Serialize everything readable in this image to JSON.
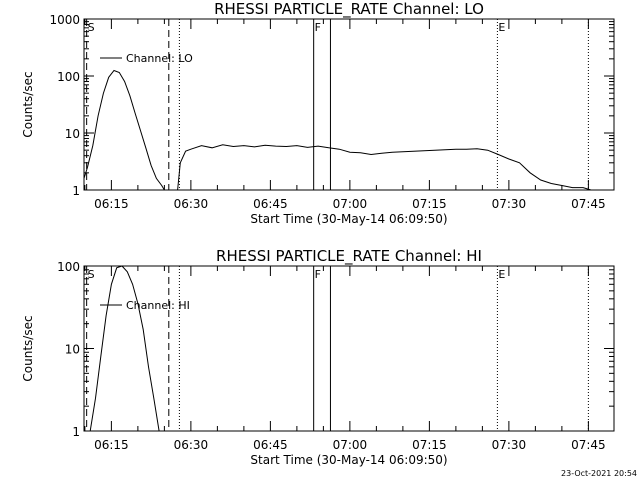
{
  "chart_data": [
    {
      "type": "line",
      "title": "RHESSI PARTICLE_RATE Channel: LO",
      "xlabel": "Start Time (30-May-14 06:09:50)",
      "ylabel": "Counts/sec",
      "yscale": "log",
      "ylim": [
        1,
        1000
      ],
      "xlim": [
        "06:09:50",
        "07:49:50"
      ],
      "x_ticks": [
        "06:15",
        "06:30",
        "06:45",
        "07:00",
        "07:15",
        "07:30",
        "07:45"
      ],
      "y_ticks": [
        "1",
        "10",
        "100",
        "1000"
      ],
      "legend": {
        "placement": "top-left"
      },
      "markers": [
        {
          "label": "S",
          "time": "06:10:20",
          "style": "dashed"
        },
        {
          "label": "",
          "time": "06:25:50",
          "style": "dashed"
        },
        {
          "label": "",
          "time": "06:27:50",
          "style": "dotted"
        },
        {
          "label": "F",
          "time": "06:53:10",
          "style": "solid"
        },
        {
          "label": "",
          "time": "06:56:20",
          "style": "solid"
        },
        {
          "label": "E",
          "time": "07:27:50",
          "style": "dotted"
        },
        {
          "label": "",
          "time": "07:45:00",
          "style": "dotted"
        }
      ],
      "series": [
        {
          "name": "Channel: LO",
          "x": [
            "06:09:50",
            "06:10:30",
            "06:11:30",
            "06:12:30",
            "06:13:30",
            "06:14:30",
            "06:15:30",
            "06:16:30",
            "06:17:30",
            "06:18:30",
            "06:19:30",
            "06:20:30",
            "06:21:30",
            "06:22:30",
            "06:23:30",
            "06:24:30",
            "06:25:00",
            "06:25:30",
            "06:27:30",
            "06:28:00",
            "06:29:00",
            "06:30:00",
            "06:32:00",
            "06:34:00",
            "06:36:00",
            "06:38:00",
            "06:40:00",
            "06:42:00",
            "06:44:00",
            "06:46:00",
            "06:48:00",
            "06:50:00",
            "06:52:00",
            "06:54:00",
            "06:56:00",
            "06:58:00",
            "07:00:00",
            "07:02:00",
            "07:04:00",
            "07:06:00",
            "07:08:00",
            "07:10:00",
            "07:12:00",
            "07:14:00",
            "07:16:00",
            "07:18:00",
            "07:20:00",
            "07:22:00",
            "07:24:00",
            "07:26:00",
            "07:28:00",
            "07:30:00",
            "07:32:00",
            "07:34:00",
            "07:36:00",
            "07:38:00",
            "07:40:00",
            "07:42:00",
            "07:44:00",
            "07:45:30"
          ],
          "y": [
            1.6,
            2.5,
            6,
            20,
            50,
            95,
            125,
            115,
            80,
            45,
            22,
            11,
            5.5,
            2.7,
            1.6,
            1.2,
            1,
            null,
            1,
            3,
            4.8,
            5.2,
            6,
            5.5,
            6.2,
            5.8,
            6,
            5.7,
            6.1,
            5.9,
            5.8,
            6,
            5.6,
            5.9,
            5.5,
            5.2,
            4.6,
            4.5,
            4.2,
            4.4,
            4.6,
            4.7,
            4.8,
            4.9,
            5,
            5.1,
            5.2,
            5.2,
            5.3,
            5.0,
            4.2,
            3.5,
            3.0,
            2.0,
            1.5,
            1.3,
            1.2,
            1.1,
            1.1,
            1
          ]
        }
      ]
    },
    {
      "type": "line",
      "title": "RHESSI PARTICLE_RATE Channel: HI",
      "xlabel": "Start Time (30-May-14 06:09:50)",
      "ylabel": "Counts/sec",
      "yscale": "log",
      "ylim": [
        1,
        100
      ],
      "xlim": [
        "06:09:50",
        "07:49:50"
      ],
      "x_ticks": [
        "06:15",
        "06:30",
        "06:45",
        "07:00",
        "07:15",
        "07:30",
        "07:45"
      ],
      "y_ticks": [
        "1",
        "10",
        "100"
      ],
      "legend": {
        "placement": "top-left"
      },
      "markers": [
        {
          "label": "S",
          "time": "06:10:20",
          "style": "dashed"
        },
        {
          "label": "",
          "time": "06:25:50",
          "style": "dashed"
        },
        {
          "label": "",
          "time": "06:27:50",
          "style": "dotted"
        },
        {
          "label": "F",
          "time": "06:53:10",
          "style": "solid"
        },
        {
          "label": "",
          "time": "06:56:20",
          "style": "solid"
        },
        {
          "label": "E",
          "time": "07:27:50",
          "style": "dotted"
        },
        {
          "label": "",
          "time": "07:45:00",
          "style": "dotted"
        }
      ],
      "series": [
        {
          "name": "Channel: HI",
          "x": [
            "06:11:00",
            "06:12:00",
            "06:13:00",
            "06:14:00",
            "06:15:00",
            "06:16:00",
            "06:17:00",
            "06:18:00",
            "06:19:00",
            "06:20:00",
            "06:21:00",
            "06:22:00",
            "06:23:00",
            "06:24:00"
          ],
          "y": [
            1,
            2.5,
            8,
            25,
            60,
            95,
            100,
            85,
            60,
            35,
            17,
            6,
            2.5,
            1
          ]
        }
      ]
    }
  ],
  "timestamp": "23-Oct-2021 20:54"
}
